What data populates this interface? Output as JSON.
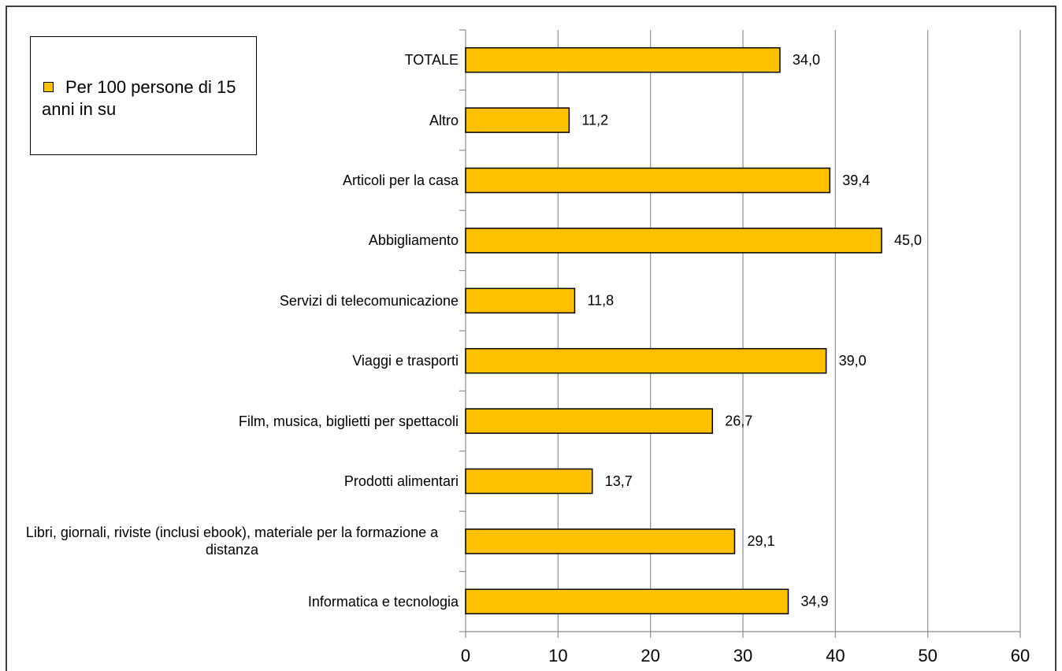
{
  "chart_data": {
    "type": "bar",
    "orientation": "horizontal",
    "categories": [
      "TOTALE",
      "Altro",
      "Articoli per la casa",
      "Abbigliamento",
      "Servizi di telecomunicazione",
      "Viaggi e trasporti",
      "Film, musica, biglietti per spettacoli",
      "Prodotti alimentari",
      "Libri, giornali, riviste (inclusi ebook), materiale per la formazione  a distanza",
      "Informatica  e tecnologia"
    ],
    "series": [
      {
        "name": "Per 100 persone di 15 anni  in su",
        "color": "#ffc000",
        "values": [
          34.0,
          11.2,
          39.4,
          45.0,
          11.8,
          39.0,
          26.7,
          13.7,
          29.1,
          34.9
        ],
        "value_labels": [
          "34,0",
          "11,2",
          "39,4",
          "45,0",
          "11,8",
          "39,0",
          "26,7",
          "13,7",
          "29,1",
          "34,9"
        ]
      }
    ],
    "xlim": [
      0,
      60
    ],
    "xticks": [
      0,
      10,
      20,
      30,
      40,
      50,
      60
    ],
    "grid": true,
    "legend": "top-left"
  }
}
